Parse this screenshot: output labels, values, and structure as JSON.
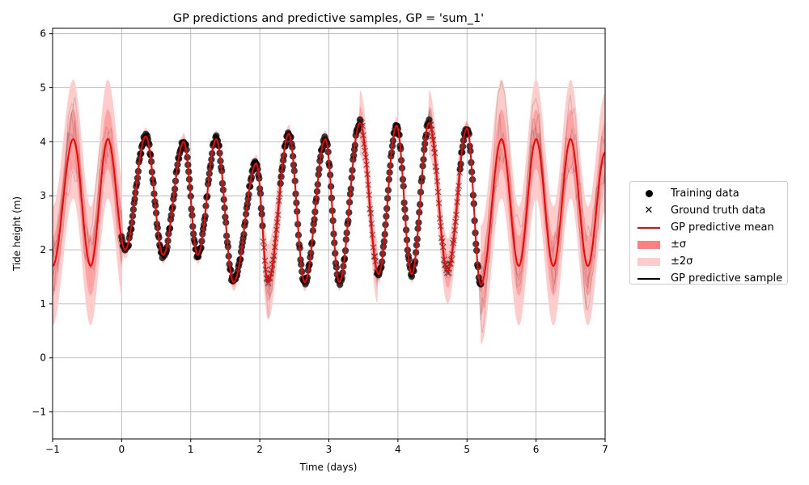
{
  "chart_data": {
    "type": "line",
    "title": "GP predictions and predictive samples, GP = 'sum_1'",
    "xlabel": "Time (days)",
    "ylabel": "Tide height (m)",
    "xlim": [
      -1,
      7
    ],
    "ylim": [
      -1.5,
      6.1
    ],
    "x_ticks": [
      "−1",
      "0",
      "1",
      "2",
      "3",
      "4",
      "5",
      "6",
      "7"
    ],
    "y_ticks": [
      "−1",
      "0",
      "1",
      "2",
      "3",
      "4",
      "5",
      "6"
    ],
    "grid": true,
    "legend_position": "right",
    "legend": [
      {
        "label": "Training data",
        "symbol": "dot",
        "color": "#000000"
      },
      {
        "label": "Ground truth data",
        "symbol": "x",
        "color": "#000000"
      },
      {
        "label": "GP predictive mean",
        "symbol": "line",
        "color": "#ff0000"
      },
      {
        "label": "±σ",
        "symbol": "patch",
        "color": "#ff8080"
      },
      {
        "label": "±2σ",
        "symbol": "patch",
        "color": "#ffcccc"
      },
      {
        "label": "GP predictive sample",
        "symbol": "line",
        "color": "#000000"
      }
    ],
    "training_intervals": [
      [
        0,
        2.05
      ],
      [
        2.3,
        3.45
      ],
      [
        3.7,
        4.45
      ],
      [
        4.9,
        5.2
      ]
    ],
    "ground_truth_intervals": [
      [
        2.05,
        2.3
      ],
      [
        3.45,
        3.7
      ],
      [
        4.45,
        4.9
      ]
    ],
    "mean_keypoints": {
      "x": [
        -1.0,
        -0.7,
        -0.45,
        -0.2,
        0.05,
        0.35,
        0.6,
        0.9,
        1.1,
        1.37,
        1.62,
        1.95,
        2.12,
        2.42,
        2.65,
        2.95,
        3.15,
        3.45,
        3.72,
        3.98,
        4.2,
        4.45,
        4.72,
        5.0,
        5.2,
        5.5,
        5.75,
        6.0,
        6.25,
        6.5,
        6.75,
        7.0
      ],
      "y": [
        1.7,
        4.05,
        1.7,
        4.05,
        2.0,
        4.1,
        1.9,
        4.0,
        1.9,
        4.05,
        1.4,
        3.6,
        1.4,
        4.15,
        1.4,
        4.05,
        1.4,
        4.35,
        1.55,
        4.3,
        1.55,
        4.35,
        1.6,
        4.25,
        1.35,
        4.05,
        1.7,
        4.05,
        1.7,
        4.05,
        1.7,
        3.8
      ]
    },
    "sigma_by_region": [
      {
        "x_range": [
          -1,
          0
        ],
        "sigma": 0.55
      },
      {
        "x_range": [
          0,
          5.2
        ],
        "sigma": 0.08
      },
      {
        "x_range": [
          2.05,
          2.3
        ],
        "sigma": 0.35
      },
      {
        "x_range": [
          3.45,
          3.7
        ],
        "sigma": 0.3
      },
      {
        "x_range": [
          4.45,
          4.9
        ],
        "sigma": 0.3
      },
      {
        "x_range": [
          5.2,
          7
        ],
        "sigma": 0.55
      }
    ],
    "series": [
      {
        "name": "Training data",
        "color": "#000000"
      },
      {
        "name": "Ground truth data",
        "color": "#000000"
      },
      {
        "name": "GP predictive mean",
        "color": "#ff0000"
      },
      {
        "name": "GP predictive sample",
        "color": "#000000",
        "count": 5
      }
    ]
  }
}
